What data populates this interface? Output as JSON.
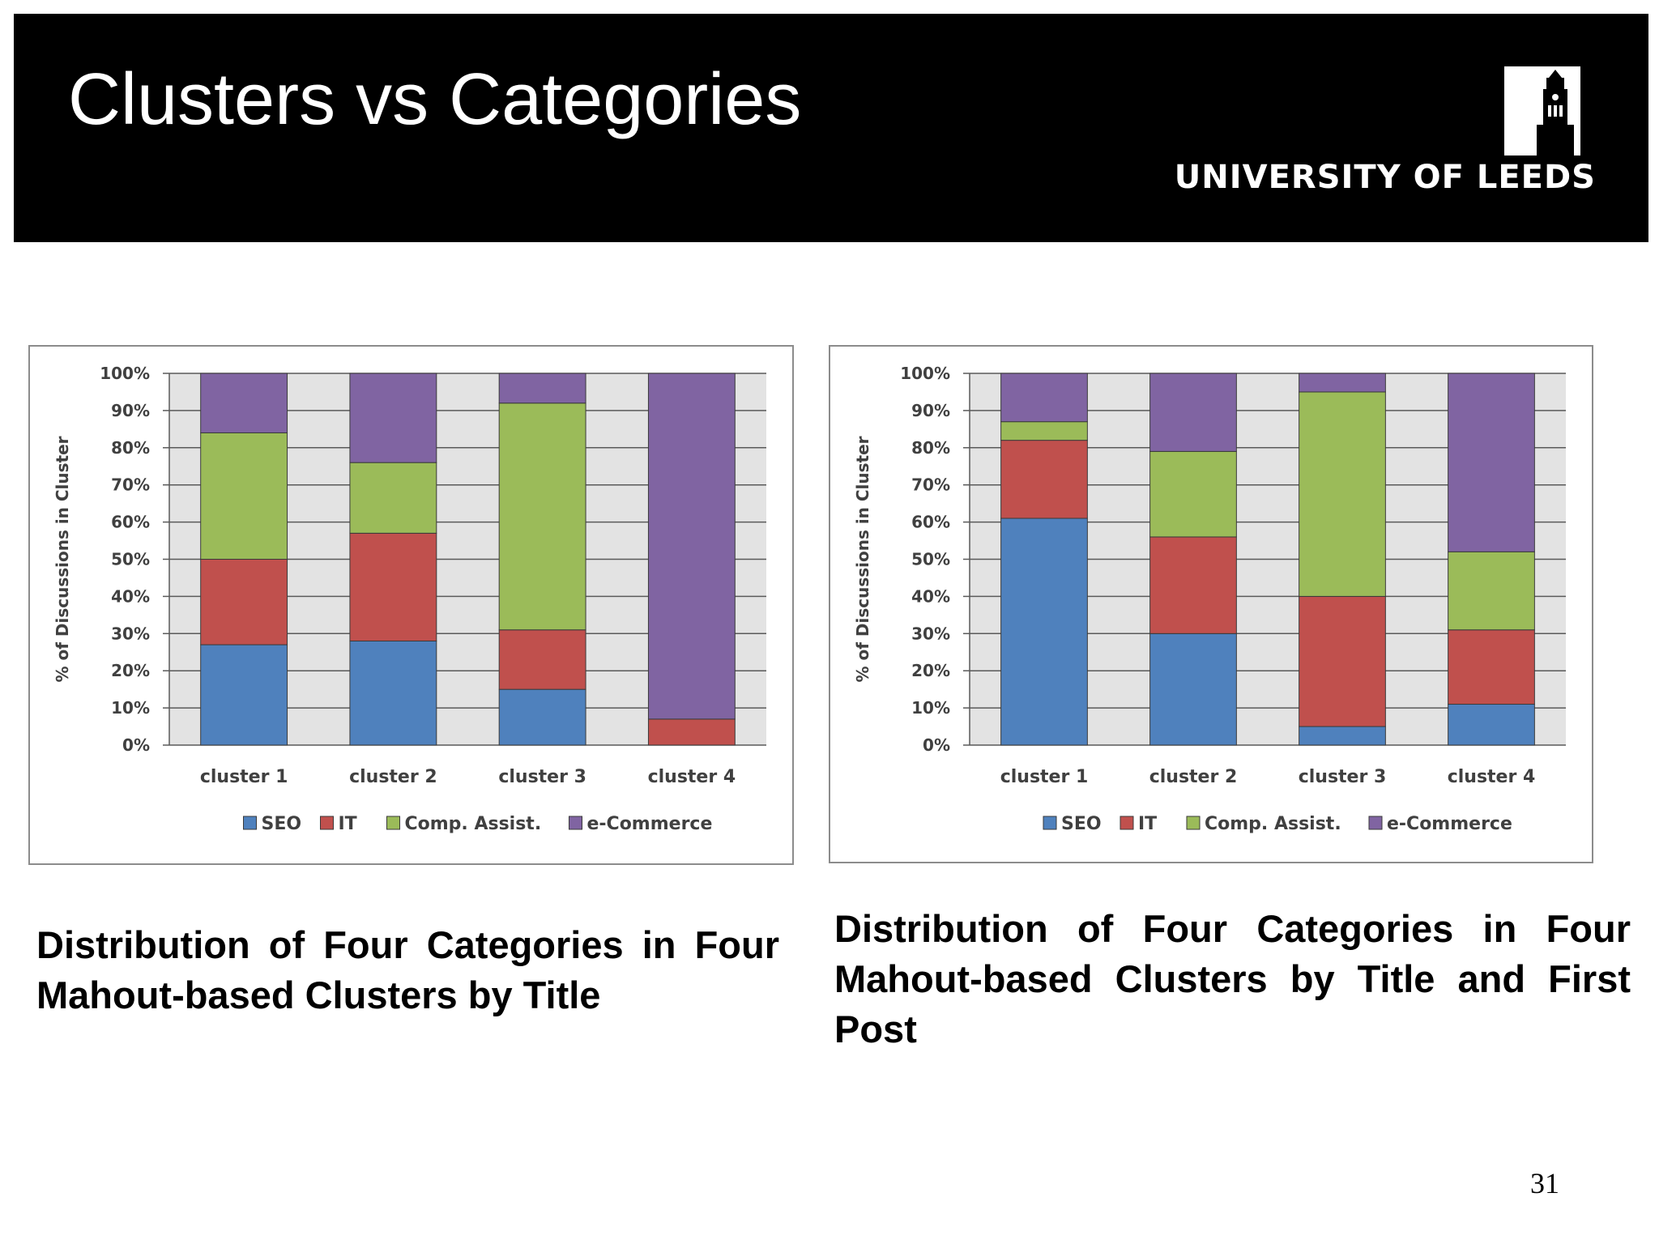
{
  "slide": {
    "title": "Clusters vs Categories",
    "logo_text": "UNIVERSITY OF LEEDS",
    "page_number": "31",
    "header_color": "#000000"
  },
  "captions": [
    "Distribution of Four Categories in Four Mahout-based Clusters by Title",
    "Distribution of Four Categories in Four Mahout-based Clusters by Title and First Post"
  ],
  "chart_data": [
    {
      "type": "bar",
      "stacked": true,
      "categories": [
        "cluster 1",
        "cluster 2",
        "cluster 3",
        "cluster 4"
      ],
      "ylabel": "% of Discussions in Cluster",
      "yticks": [
        "0%",
        "10%",
        "20%",
        "30%",
        "40%",
        "50%",
        "60%",
        "70%",
        "80%",
        "90%",
        "100%"
      ],
      "ylim": [
        0,
        100
      ],
      "grid": true,
      "legend_position": "bottom",
      "series": [
        {
          "name": "SEO",
          "color": "#4f81bd",
          "values": [
            27,
            28,
            15,
            0
          ]
        },
        {
          "name": "IT",
          "color": "#c0504d",
          "values": [
            23,
            29,
            16,
            7
          ]
        },
        {
          "name": "Comp. Assist.",
          "color": "#9bbb59",
          "values": [
            34,
            19,
            61,
            0
          ]
        },
        {
          "name": "e-Commerce",
          "color": "#8064a2",
          "values": [
            16,
            24,
            8,
            93
          ]
        }
      ]
    },
    {
      "type": "bar",
      "stacked": true,
      "categories": [
        "cluster 1",
        "cluster 2",
        "cluster 3",
        "cluster 4"
      ],
      "ylabel": "% of Discussions in Cluster",
      "yticks": [
        "0%",
        "10%",
        "20%",
        "30%",
        "40%",
        "50%",
        "60%",
        "70%",
        "80%",
        "90%",
        "100%"
      ],
      "ylim": [
        0,
        100
      ],
      "grid": true,
      "legend_position": "bottom",
      "series": [
        {
          "name": "SEO",
          "color": "#4f81bd",
          "values": [
            61,
            30,
            5,
            11
          ]
        },
        {
          "name": "IT",
          "color": "#c0504d",
          "values": [
            21,
            26,
            35,
            20
          ]
        },
        {
          "name": "Comp. Assist.",
          "color": "#9bbb59",
          "values": [
            5,
            23,
            55,
            21
          ]
        },
        {
          "name": "e-Commerce",
          "color": "#8064a2",
          "values": [
            13,
            21,
            5,
            48
          ]
        }
      ]
    }
  ]
}
